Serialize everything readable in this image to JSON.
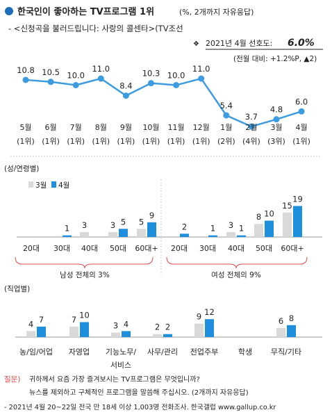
{
  "header": {
    "title": "한국인이 좋아하는 TV프로그램 1위",
    "title_note": "(%, 2개까지 자유응답)",
    "subtitle": "- <신청곡을 불러드립니다: 사랑의 콜센타>(TV조선",
    "highlight_label": "2021년 4월 선호도:",
    "highlight_value": "6.0%",
    "highlight_change": "(전월 대비: +1.2%P, ▲2)"
  },
  "colors": {
    "line": "#3d9be0",
    "bar_march": "#d9d9d9",
    "bar_april": "#1e8fdc",
    "title_bullet": "#1b6fb8",
    "bracket": "#e04848",
    "question": "#e04848"
  },
  "chart_data": [
    {
      "type": "line",
      "x": [
        "5월",
        "6월",
        "7월",
        "8월",
        "9월",
        "10월",
        "11월",
        "12월",
        "1월",
        "2월",
        "3월",
        "4월"
      ],
      "rank_labels": [
        "(1위)",
        "(1위)",
        "(1위)",
        "(1위)",
        "(1위)",
        "(1위)",
        "(1위)",
        "(1위)",
        "(2위)",
        "(4위)",
        "(3위)",
        "(1위)"
      ],
      "values": [
        10.8,
        10.5,
        10.0,
        11.0,
        8.4,
        10.3,
        10.0,
        11.0,
        5.4,
        3.7,
        4.8,
        6.0
      ],
      "value_labels": [
        "10.8",
        "10.5",
        "10.0",
        "11.0",
        "8.4",
        "10.3",
        "10.0",
        "11.0",
        "5.4",
        "3.7",
        "4.8",
        "6.0"
      ]
    },
    {
      "type": "bar",
      "section_label": "(성/연령별)",
      "legend": [
        "3월",
        "4월"
      ],
      "categories": [
        "20대",
        "30대",
        "40대",
        "50대",
        "60대+",
        "20대",
        "30대",
        "40대",
        "50대",
        "60대+"
      ],
      "series": [
        {
          "name": "3월",
          "values": [
            0,
            0,
            3,
            3,
            5,
            0,
            0,
            3,
            8,
            15
          ],
          "labels": [
            "",
            "",
            "3",
            "3",
            "5",
            "",
            "",
            "3",
            "8",
            "15"
          ]
        },
        {
          "name": "4월",
          "values": [
            0,
            1,
            0,
            5,
            9,
            2,
            1,
            1,
            10,
            19
          ],
          "labels": [
            "",
            "1",
            "",
            "5",
            "9",
            "2",
            "1",
            "1",
            "10",
            "19"
          ]
        }
      ],
      "group_labels": [
        "남성 전체의 3%",
        "여성 전체의 9%"
      ]
    },
    {
      "type": "bar",
      "section_label": "(직업별)",
      "categories": [
        "농/임/어업",
        "자영업",
        "기능노무/\n서비스",
        "사무/관리",
        "전업주부",
        "학생",
        "무직/기타"
      ],
      "series": [
        {
          "name": "3월",
          "values": [
            4,
            7,
            3,
            2,
            9,
            0,
            6
          ],
          "labels": [
            "4",
            "7",
            "3",
            "2",
            "9",
            "",
            "6"
          ]
        },
        {
          "name": "4월",
          "values": [
            7,
            10,
            4,
            2,
            12,
            0,
            8
          ],
          "labels": [
            "7",
            "10",
            "4",
            "2",
            "12",
            "",
            "8"
          ]
        }
      ]
    }
  ],
  "footer": {
    "question_label": "질문)",
    "question_line1": "귀하께서 요즘 가장 즐겨보시는 TV프로그램은 무엇입니까?",
    "question_line2": "뉴스를 제외하고 구체적인 프로그램을 말씀해 주십시오. (2개까지 자유응답)",
    "source": "- 2021년 4월 20~22일 전국 만 18세 이상 1,003명 전화조사. 한국갤럽 www.gallup.co.kr"
  }
}
